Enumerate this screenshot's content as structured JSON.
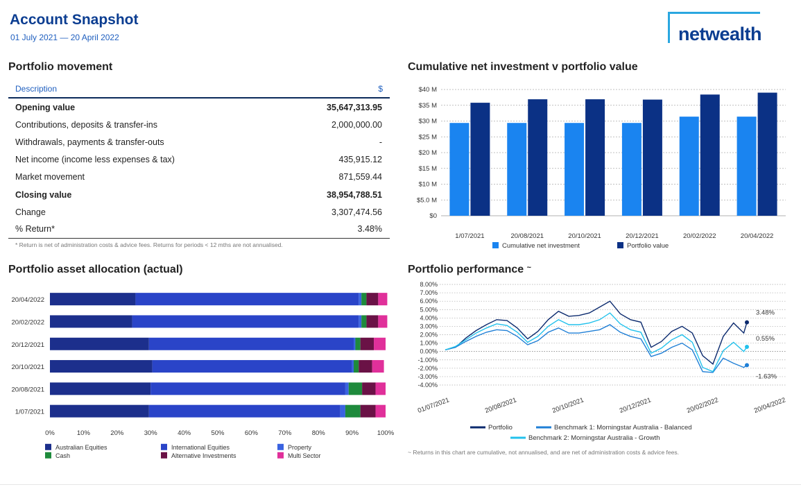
{
  "header": {
    "title": "Account Snapshot",
    "date_range": "01 July 2021 — 20 April 2022",
    "logo_text": "netwealth"
  },
  "colors": {
    "brand_navy": "#0b3d91",
    "brand_cyan": "#2aa7e0"
  },
  "movement": {
    "title": "Portfolio movement",
    "col_description": "Description",
    "col_value": "$",
    "rows": [
      {
        "label": "Opening value",
        "value": "35,647,313.95",
        "bold": true
      },
      {
        "label": "Contributions, deposits & transfer-ins",
        "value": "2,000,000.00",
        "bold": false
      },
      {
        "label": "Withdrawals, payments & transfer-outs",
        "value": "-",
        "bold": false
      },
      {
        "label": "Net income (income less expenses & tax)",
        "value": "435,915.12",
        "bold": false
      },
      {
        "label": "Market movement",
        "value": "871,559.44",
        "bold": false
      },
      {
        "label": "Closing value",
        "value": "38,954,788.51",
        "bold": true
      },
      {
        "label": "Change",
        "value": "3,307,474.56",
        "bold": false
      },
      {
        "label": "% Return*",
        "value": "3.48%",
        "bold": false
      }
    ],
    "footnote": "* Return is net of administration costs & advice fees. Returns for periods < 12 mths are not annualised."
  },
  "chart_data": [
    {
      "id": "cumulative",
      "type": "bar",
      "title": "Cumulative net investment v portfolio value",
      "categories": [
        "1/07/2021",
        "20/08/2021",
        "20/10/2021",
        "20/12/2021",
        "20/02/2022",
        "20/04/2022"
      ],
      "series": [
        {
          "name": "Cumulative net investment",
          "color": "#1a84f0",
          "values": [
            29.4,
            29.4,
            29.4,
            29.4,
            31.4,
            31.4
          ]
        },
        {
          "name": "Portfolio value",
          "color": "#0b3185",
          "values": [
            35.8,
            36.9,
            36.9,
            36.8,
            38.4,
            39.0
          ]
        }
      ],
      "ylim": [
        0,
        40
      ],
      "yticks": [
        "$0",
        "$5.0 M",
        "$10 M",
        "$15 M",
        "$20 M",
        "$25 M",
        "$30 M",
        "$35 M",
        "$40 M"
      ],
      "grid": true,
      "legend": "bottom"
    },
    {
      "id": "allocation",
      "type": "bar",
      "orientation": "horizontal-stacked",
      "title": "Portfolio asset allocation (actual)",
      "categories": [
        "20/04/2022",
        "20/02/2022",
        "20/12/2021",
        "20/10/2021",
        "20/08/2021",
        "1/07/2021"
      ],
      "series": [
        {
          "name": "Australian Equities",
          "color": "#1c2f8c",
          "values": [
            25.5,
            24.5,
            29.5,
            30.5,
            30.0,
            29.5
          ]
        },
        {
          "name": "International Equities",
          "color": "#2a44c8",
          "values": [
            66.5,
            67.5,
            61.0,
            59.5,
            58.0,
            57.0
          ]
        },
        {
          "name": "Property",
          "color": "#3a63e0",
          "values": [
            0.8,
            0.8,
            0.5,
            0.5,
            1.0,
            1.5
          ]
        },
        {
          "name": "Cash",
          "color": "#1e8a3c",
          "values": [
            1.5,
            1.5,
            1.5,
            1.5,
            4.0,
            4.5
          ]
        },
        {
          "name": "Alternative Investments",
          "color": "#6a1246",
          "values": [
            3.5,
            3.5,
            4.0,
            4.0,
            4.0,
            4.5
          ]
        },
        {
          "name": "Multi Sector",
          "color": "#e0309a",
          "values": [
            2.7,
            2.7,
            3.5,
            3.5,
            3.0,
            3.0
          ]
        }
      ],
      "xlim": [
        0,
        100
      ],
      "xticks": [
        "0%",
        "10%",
        "20%",
        "30%",
        "40%",
        "50%",
        "60%",
        "70%",
        "80%",
        "90%",
        "100%"
      ],
      "legend": "bottom"
    },
    {
      "id": "performance",
      "type": "line",
      "title": "Portfolio performance",
      "title_mark": "~",
      "ylim": [
        -4,
        8
      ],
      "yticks": [
        "8.00%",
        "7.00%",
        "6.00%",
        "5.00%",
        "4.00%",
        "3.00%",
        "2.00%",
        "1.00%",
        "0.00%",
        "-1.00%",
        "-2.00%",
        "-3.00%",
        "-4.00%"
      ],
      "xticks": [
        "01/07/2021",
        "20/08/2021",
        "20/10/2021",
        "20/12/2021",
        "20/02/2022",
        "20/04/2022"
      ],
      "x": [
        0,
        10,
        20,
        30,
        40,
        50,
        60,
        70,
        80,
        90,
        100,
        110,
        120,
        130,
        140,
        150,
        160,
        170,
        180,
        190,
        200,
        210,
        220,
        230,
        240,
        250,
        260,
        270,
        280,
        290,
        293
      ],
      "series": [
        {
          "name": "Portfolio",
          "color": "#0b2a6e",
          "end_label": "3.48%",
          "values": [
            0.2,
            0.5,
            1.6,
            2.5,
            3.2,
            3.8,
            3.7,
            2.8,
            1.5,
            2.4,
            3.8,
            4.8,
            4.2,
            4.3,
            4.6,
            5.3,
            6.0,
            4.5,
            3.8,
            3.5,
            0.5,
            1.2,
            2.4,
            3.0,
            2.2,
            -0.5,
            -1.5,
            1.8,
            3.4,
            2.2,
            3.48
          ]
        },
        {
          "name": "Benchmark 1: Morningstar Australia - Balanced",
          "color": "#1f7fd6",
          "end_label": "-1.63%",
          "values": [
            0.2,
            0.5,
            1.2,
            1.8,
            2.3,
            2.6,
            2.5,
            1.8,
            0.8,
            1.3,
            2.3,
            2.8,
            2.2,
            2.2,
            2.4,
            2.6,
            3.2,
            2.3,
            1.8,
            1.5,
            -0.6,
            -0.2,
            0.5,
            1.0,
            0.2,
            -2.4,
            -2.5,
            -0.8,
            -1.4,
            -1.9,
            -1.63
          ]
        },
        {
          "name": "Benchmark 2: Morningstar Australia - Growth",
          "color": "#22c1ec",
          "end_label": "0.55%",
          "values": [
            0.2,
            0.6,
            1.4,
            2.2,
            2.8,
            3.3,
            3.1,
            2.3,
            1.1,
            1.8,
            3.0,
            3.8,
            3.2,
            3.2,
            3.4,
            3.8,
            4.6,
            3.3,
            2.6,
            2.3,
            -0.2,
            0.4,
            1.4,
            2.0,
            1.1,
            -1.9,
            -2.4,
            0.1,
            1.1,
            0.0,
            0.55
          ]
        }
      ],
      "legend": "bottom",
      "footnote": "~ Returns in this chart are cumulative, not annualised, and are net of administration costs & advice fees."
    }
  ]
}
